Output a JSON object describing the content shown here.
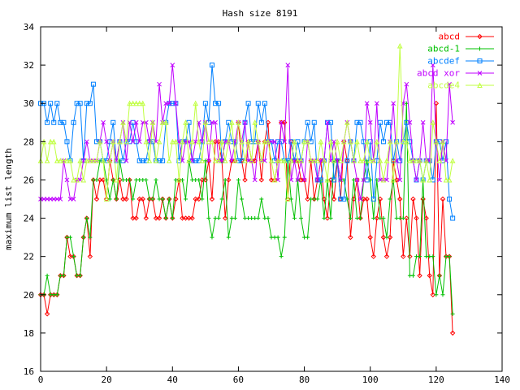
{
  "chart_data": {
    "type": "line",
    "title": "Hash size 8191",
    "xlabel": "",
    "ylabel": "maximum list length",
    "xlim": [
      0,
      140
    ],
    "ylim": [
      16,
      34
    ],
    "xticks": [
      0,
      20,
      40,
      60,
      80,
      100,
      120,
      140
    ],
    "yticks": [
      16,
      18,
      20,
      22,
      24,
      26,
      28,
      30,
      32,
      34
    ],
    "grid": false,
    "legend_position": "top-right",
    "x": [
      0,
      1,
      2,
      3,
      4,
      5,
      6,
      7,
      8,
      9,
      10,
      11,
      12,
      13,
      14,
      15,
      16,
      17,
      18,
      19,
      20,
      21,
      22,
      23,
      24,
      25,
      26,
      27,
      28,
      29,
      30,
      31,
      32,
      33,
      34,
      35,
      36,
      37,
      38,
      39,
      40,
      41,
      42,
      43,
      44,
      45,
      46,
      47,
      48,
      49,
      50,
      51,
      52,
      53,
      54,
      55,
      56,
      57,
      58,
      59,
      60,
      61,
      62,
      63,
      64,
      65,
      66,
      67,
      68,
      69,
      70,
      71,
      72,
      73,
      74,
      75,
      76,
      77,
      78,
      79,
      80,
      81,
      82,
      83,
      84,
      85,
      86,
      87,
      88,
      89,
      90,
      91,
      92,
      93,
      94,
      95,
      96,
      97,
      98,
      99,
      100,
      101,
      102,
      103,
      104,
      105,
      106,
      107,
      108,
      109,
      110,
      111,
      112,
      113,
      114,
      115,
      116,
      117,
      118,
      119,
      120,
      121,
      122,
      123,
      124,
      125
    ],
    "series": [
      {
        "name": "abcd",
        "color": "#ff0000",
        "marker": "diamond",
        "values": [
          20,
          20,
          19,
          20,
          20,
          20,
          21,
          21,
          23,
          22,
          22,
          21,
          21,
          23,
          24,
          22,
          26,
          25,
          26,
          26,
          25,
          27,
          26,
          25,
          26,
          25,
          25,
          26,
          24,
          24,
          25,
          25,
          24,
          25,
          25,
          24,
          24,
          25,
          24,
          25,
          24,
          25,
          26,
          24,
          24,
          24,
          24,
          25,
          25,
          26,
          26,
          27,
          25,
          28,
          28,
          27,
          24,
          26,
          27,
          27,
          29,
          27,
          26,
          28,
          27,
          27,
          28,
          26,
          28,
          29,
          26,
          26,
          27,
          29,
          29,
          25,
          28,
          27,
          27,
          26,
          26,
          25,
          27,
          25,
          26,
          27,
          25,
          24,
          26,
          25,
          27,
          25,
          28,
          27,
          23,
          25,
          26,
          24,
          25,
          25,
          23,
          22,
          24,
          25,
          23,
          22,
          23,
          27,
          26,
          25,
          22,
          24,
          22,
          25,
          24,
          21,
          25,
          24,
          21,
          20,
          30,
          21,
          25,
          22,
          22,
          18
        ]
      },
      {
        "name": "abcd-1",
        "color": "#00c000",
        "marker": "plus",
        "values": [
          20,
          20,
          21,
          20,
          20,
          20,
          21,
          21,
          23,
          23,
          22,
          21,
          21,
          23,
          24,
          23,
          26,
          26,
          27,
          27,
          26,
          25,
          26,
          25,
          27,
          26,
          26,
          26,
          25,
          26,
          26,
          26,
          26,
          25,
          25,
          26,
          25,
          25,
          24,
          25,
          24,
          26,
          26,
          26,
          25,
          27,
          26,
          26,
          26,
          25,
          27,
          24,
          23,
          24,
          24,
          25,
          26,
          23,
          24,
          24,
          26,
          25,
          24,
          24,
          24,
          24,
          24,
          25,
          24,
          24,
          23,
          23,
          23,
          22,
          23,
          27,
          25,
          24,
          26,
          24,
          23,
          23,
          25,
          25,
          25,
          26,
          24,
          26,
          24,
          27,
          27,
          26,
          26,
          25,
          24,
          26,
          24,
          24,
          26,
          27,
          26,
          24,
          26,
          24,
          24,
          23,
          25,
          26,
          24,
          24,
          24,
          30,
          21,
          21,
          22,
          22,
          26,
          22,
          22,
          22,
          20,
          21,
          20,
          22,
          22,
          19
        ]
      },
      {
        "name": "abcdef",
        "color": "#0080ff",
        "marker": "square",
        "values": [
          30,
          30,
          29,
          30,
          29,
          30,
          29,
          29,
          28,
          27,
          29,
          30,
          30,
          27,
          30,
          30,
          31,
          28,
          28,
          27,
          27,
          28,
          29,
          27,
          28,
          27,
          28,
          28,
          29,
          28,
          27,
          27,
          27,
          28,
          28,
          27,
          27,
          27,
          29,
          30,
          30,
          30,
          27,
          28,
          28,
          29,
          27,
          27,
          27,
          28,
          30,
          29,
          32,
          30,
          30,
          27,
          28,
          29,
          28,
          28,
          27,
          27,
          29,
          30,
          28,
          28,
          30,
          29,
          30,
          28,
          28,
          27,
          28,
          28,
          27,
          27,
          28,
          27,
          28,
          27,
          28,
          29,
          28,
          29,
          26,
          26,
          27,
          29,
          29,
          26,
          27,
          25,
          25,
          27,
          28,
          27,
          29,
          29,
          28,
          26,
          28,
          25,
          27,
          29,
          28,
          29,
          29,
          27,
          28,
          27,
          28,
          29,
          28,
          27,
          26,
          27,
          26,
          27,
          27,
          26,
          28,
          28,
          27,
          28,
          25,
          24
        ]
      },
      {
        "name": "abcd xor",
        "color": "#c000ff",
        "marker": "cross",
        "values": [
          25,
          25,
          25,
          25,
          25,
          25,
          25,
          27,
          26,
          25,
          25,
          26,
          26,
          27,
          28,
          27,
          27,
          27,
          28,
          29,
          28,
          27,
          28,
          27,
          28,
          29,
          27,
          29,
          28,
          29,
          28,
          29,
          29,
          28,
          29,
          28,
          31,
          29,
          30,
          30,
          32,
          30,
          28,
          27,
          28,
          28,
          27,
          28,
          29,
          28,
          29,
          27,
          29,
          29,
          27,
          27,
          28,
          28,
          27,
          28,
          29,
          28,
          29,
          27,
          27,
          26,
          28,
          27,
          27,
          28,
          28,
          28,
          26,
          29,
          28,
          32,
          26,
          27,
          26,
          27,
          26,
          28,
          27,
          27,
          26,
          27,
          27,
          29,
          27,
          28,
          27,
          26,
          28,
          29,
          28,
          27,
          26,
          25,
          26,
          30,
          29,
          27,
          30,
          26,
          26,
          26,
          28,
          30,
          27,
          26,
          30,
          31,
          29,
          27,
          26,
          27,
          29,
          27,
          27,
          32,
          28,
          26,
          28,
          27,
          31,
          29
        ]
      },
      {
        "name": "abcde4",
        "color": "#c0ff40",
        "marker": "triangle",
        "values": [
          27,
          28,
          27,
          28,
          28,
          27,
          27,
          27,
          27,
          27,
          26,
          26,
          27,
          26,
          27,
          27,
          27,
          27,
          28,
          27,
          25,
          27,
          28,
          26,
          28,
          29,
          28,
          30,
          30,
          30,
          30,
          30,
          28,
          27,
          29,
          27,
          28,
          29,
          29,
          27,
          28,
          28,
          26,
          28,
          29,
          27,
          28,
          30,
          28,
          27,
          29,
          28,
          28,
          27,
          27,
          28,
          27,
          28,
          29,
          27,
          29,
          28,
          27,
          28,
          27,
          29,
          28,
          27,
          28,
          28,
          27,
          26,
          27,
          27,
          27,
          25,
          27,
          28,
          27,
          27,
          28,
          28,
          27,
          27,
          27,
          28,
          27,
          26,
          28,
          27,
          28,
          27,
          28,
          29,
          28,
          27,
          28,
          27,
          27,
          28,
          27,
          27,
          28,
          27,
          26,
          27,
          28,
          26,
          28,
          33,
          28,
          28,
          27,
          27,
          27,
          27,
          26,
          27,
          26,
          29,
          28,
          27,
          28,
          26,
          26,
          27
        ]
      }
    ]
  }
}
